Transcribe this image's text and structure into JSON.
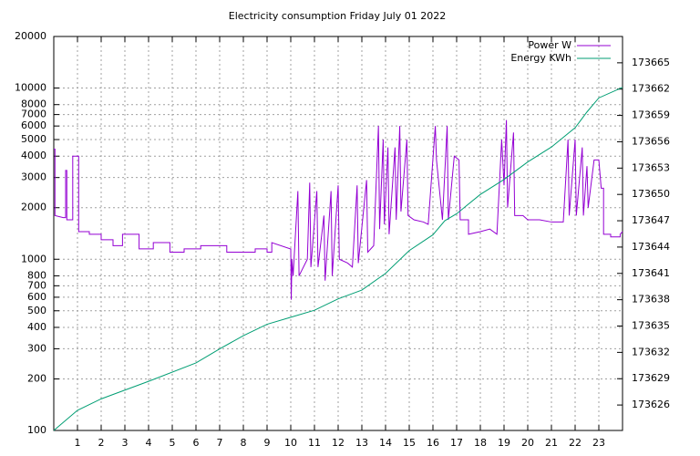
{
  "chart_data": {
    "type": "line",
    "title": "Electricity consumption Friday July 01 2022",
    "xlim": [
      0,
      24
    ],
    "xticks": [
      1,
      2,
      3,
      4,
      5,
      6,
      7,
      8,
      9,
      10,
      11,
      12,
      13,
      14,
      15,
      16,
      17,
      18,
      19,
      20,
      21,
      22,
      23
    ],
    "ylim": [
      100,
      20000
    ],
    "yscale": "log",
    "yticks": [
      100,
      200,
      300,
      400,
      500,
      600,
      700,
      800,
      1000,
      2000,
      3000,
      4000,
      5000,
      6000,
      7000,
      8000,
      10000,
      20000
    ],
    "y2lim": [
      173623.1,
      173668
    ],
    "y2ticks": [
      173626,
      173629,
      173632,
      173635,
      173638,
      173641,
      173644,
      173647,
      173650,
      173653,
      173656,
      173659,
      173662,
      173665
    ],
    "grid": true,
    "legend": "top-right",
    "series": [
      {
        "name": "Power W",
        "color": "#9400d3",
        "x": [
          0,
          0.05,
          0.05,
          0.4,
          0.5,
          0.5,
          0.55,
          0.55,
          0.8,
          0.8,
          1.0,
          1.05,
          1.05,
          1.5,
          1.5,
          1.6,
          1.6,
          2.0,
          2.0,
          2.5,
          2.5,
          2.9,
          2.9,
          3.6,
          3.6,
          4.2,
          4.2,
          4.9,
          4.9,
          5.5,
          5.5,
          6.2,
          6.2,
          7.0,
          7.0,
          7.3,
          7.3,
          8.5,
          8.5,
          9.0,
          9.0,
          9.2,
          9.2,
          9.98,
          10.0,
          10.02,
          10.05,
          10.1,
          10.3,
          10.35,
          10.7,
          10.8,
          10.85,
          11.1,
          11.15,
          11.4,
          11.45,
          11.7,
          11.75,
          12.0,
          12.05,
          12.4,
          12.6,
          12.8,
          12.85,
          13.2,
          13.25,
          13.5,
          13.7,
          13.75,
          13.9,
          13.95,
          14.1,
          14.15,
          14.4,
          14.45,
          14.6,
          14.65,
          14.9,
          14.95,
          15.2,
          15.6,
          15.8,
          16.1,
          16.15,
          16.4,
          16.6,
          16.65,
          16.9,
          17.1,
          17.15,
          17.5,
          17.5,
          18.0,
          18.4,
          18.7,
          18.9,
          19.0,
          19.1,
          19.15,
          19.4,
          19.45,
          19.8,
          20.0,
          20.5,
          21.0,
          21.5,
          21.7,
          21.75,
          22.0,
          22.05,
          22.3,
          22.35,
          22.5,
          22.55,
          22.8,
          23.0,
          23.1,
          23.2,
          23.2,
          23.5,
          23.5,
          23.9,
          23.9,
          24
        ],
        "values": [
          4400,
          4400,
          1800,
          1750,
          1750,
          3300,
          3300,
          1700,
          1700,
          4000,
          4000,
          4000,
          1450,
          1450,
          1400,
          1400,
          1400,
          1400,
          1300,
          1300,
          1200,
          1200,
          1400,
          1400,
          1150,
          1150,
          1250,
          1250,
          1100,
          1100,
          1150,
          1150,
          1200,
          1200,
          1200,
          1200,
          1100,
          1100,
          1150,
          1150,
          1100,
          1100,
          1250,
          1150,
          1150,
          580,
          1000,
          800,
          2500,
          800,
          1000,
          2800,
          900,
          2500,
          900,
          1800,
          750,
          2500,
          800,
          2700,
          1000,
          950,
          900,
          2700,
          950,
          2900,
          1100,
          1200,
          6000,
          1500,
          5000,
          1600,
          4500,
          1400,
          4500,
          1700,
          6000,
          1900,
          5000,
          1800,
          1700,
          1650,
          1600,
          6000,
          3800,
          1700,
          6000,
          1700,
          4000,
          3800,
          1700,
          1700,
          1400,
          1450,
          1500,
          1400,
          5000,
          2700,
          6500,
          2000,
          5500,
          1800,
          1800,
          1700,
          1700,
          1650,
          1650,
          5000,
          1800,
          5000,
          1800,
          4500,
          1800,
          3500,
          2000,
          3800,
          3800,
          2600,
          2600,
          1400,
          1400,
          1350,
          1350,
          1400,
          1450
        ]
      },
      {
        "name": "Energy KWh",
        "color": "#009e73",
        "axis": "y2",
        "x": [
          0,
          1,
          2,
          4,
          6,
          7,
          8,
          9,
          10,
          11,
          12,
          13,
          14,
          15,
          16,
          16.5,
          17,
          18,
          19,
          20,
          21,
          22,
          22.5,
          23,
          24
        ],
        "values": [
          173623.1,
          173625.4,
          173626.7,
          173628.7,
          173630.8,
          173632.4,
          173633.9,
          173635.2,
          173636,
          173636.8,
          173638.1,
          173639.1,
          173641,
          173643.6,
          173645.4,
          173647,
          173647.8,
          173650,
          173651.7,
          173653.7,
          173655.4,
          173657.6,
          173659.4,
          173661,
          173662.2
        ]
      }
    ]
  }
}
